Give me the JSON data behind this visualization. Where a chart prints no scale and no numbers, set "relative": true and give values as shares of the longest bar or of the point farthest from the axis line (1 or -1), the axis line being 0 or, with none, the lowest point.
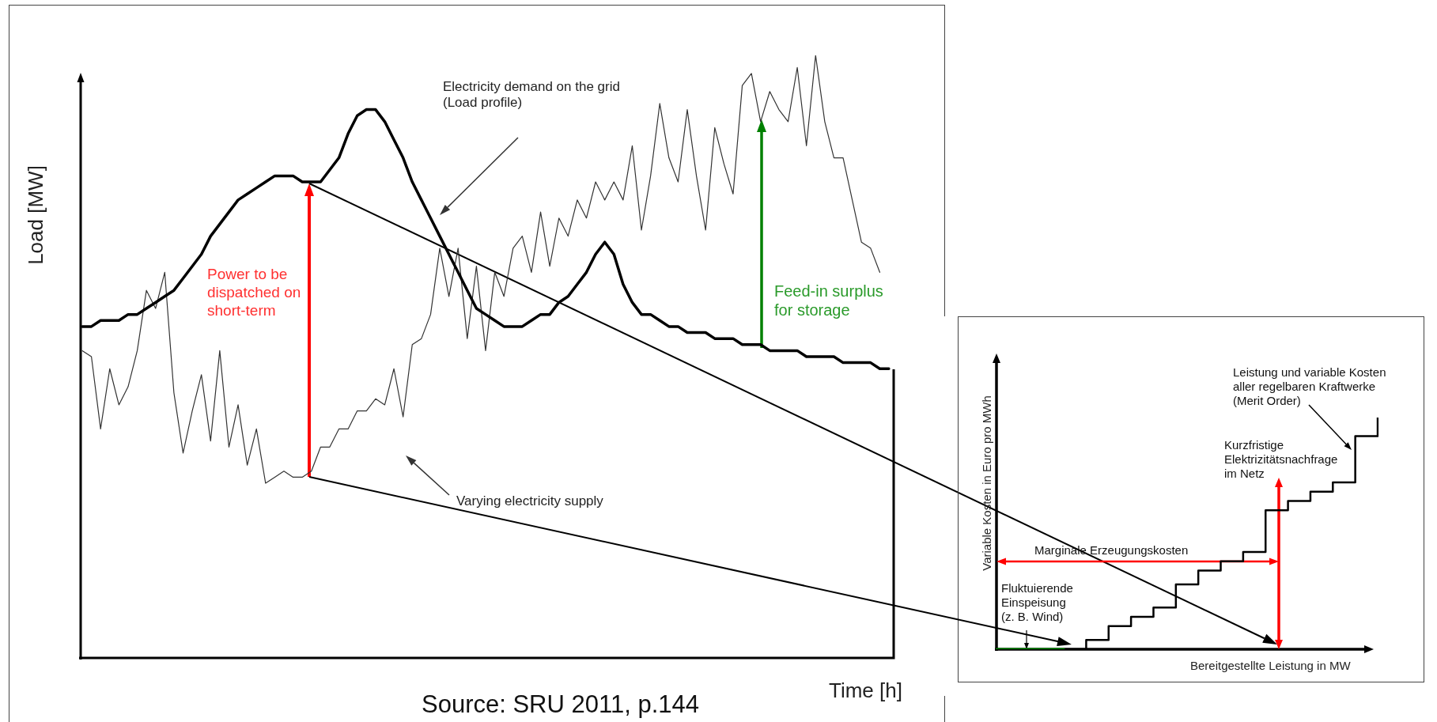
{
  "chart_data": [
    {
      "type": "line",
      "relative": true,
      "marker": "none",
      "xlabel": "Time [h]",
      "ylabel": "Load [MW]",
      "categories": [
        null,
        null,
        null,
        null,
        null,
        null,
        null,
        null,
        null,
        null,
        null,
        null,
        null,
        null,
        null,
        null,
        null,
        null,
        null,
        null,
        null,
        null,
        null,
        null,
        null,
        null,
        null,
        null,
        null,
        null,
        null,
        null,
        null,
        null,
        null,
        null,
        null,
        null,
        null,
        null,
        null,
        null,
        null,
        null,
        null,
        null,
        null,
        null,
        null,
        null,
        null,
        null,
        null,
        null,
        null,
        null,
        null,
        null,
        null,
        null,
        null,
        null,
        null,
        null,
        null,
        null,
        null,
        null,
        null,
        null,
        null,
        null,
        null,
        null,
        null,
        null,
        null,
        null,
        null,
        null,
        null,
        null,
        null,
        null,
        null,
        null,
        null,
        null,
        null
      ],
      "series": [
        {
          "color": "#000000",
          "values": [
            0.55,
            0.55,
            0.56,
            0.56,
            0.56,
            0.57,
            0.57,
            0.58,
            0.59,
            0.6,
            0.61,
            0.63,
            0.65,
            0.67,
            0.7,
            0.72,
            0.74,
            0.76,
            0.77,
            0.78,
            0.79,
            0.8,
            0.8,
            0.8,
            0.79,
            0.79,
            0.79,
            0.81,
            0.83,
            0.87,
            0.9,
            0.91,
            0.91,
            0.89,
            0.86,
            0.83,
            0.79,
            0.76,
            0.73,
            0.7,
            0.67,
            0.64,
            0.61,
            0.58,
            0.57,
            0.56,
            0.55,
            0.55,
            0.55,
            0.56,
            0.57,
            0.57,
            0.59,
            0.6,
            0.62,
            0.64,
            0.67,
            0.69,
            0.67,
            0.62,
            0.59,
            0.57,
            0.57,
            0.56,
            0.55,
            0.55,
            0.54,
            0.54,
            0.54,
            0.53,
            0.53,
            0.53,
            0.52,
            0.52,
            0.52,
            0.51,
            0.51,
            0.51,
            0.51,
            0.5,
            0.5,
            0.5,
            0.5,
            0.49,
            0.49,
            0.49,
            0.49,
            0.48,
            0.48
          ]
        },
        {
          "color": "#333333",
          "values": [
            0.51,
            0.5,
            0.38,
            0.48,
            0.42,
            0.45,
            0.51,
            0.61,
            0.58,
            0.64,
            0.44,
            0.34,
            0.41,
            0.47,
            0.36,
            0.51,
            0.35,
            0.42,
            0.32,
            0.38,
            0.29,
            0.3,
            0.31,
            0.3,
            0.3,
            0.31,
            0.35,
            0.35,
            0.38,
            0.38,
            0.41,
            0.41,
            0.43,
            0.42,
            0.48,
            0.4,
            0.52,
            0.53,
            0.57,
            0.68,
            0.6,
            0.68,
            0.53,
            0.65,
            0.51,
            0.64,
            0.6,
            0.68,
            0.7,
            0.64,
            0.74,
            0.65,
            0.73,
            0.7,
            0.76,
            0.73,
            0.79,
            0.76,
            0.79,
            0.76,
            0.85,
            0.71,
            0.8,
            0.92,
            0.83,
            0.79,
            0.91,
            0.8,
            0.71,
            0.88,
            0.82,
            0.77,
            0.95,
            0.97,
            0.89,
            0.94,
            0.91,
            0.89,
            0.98,
            0.85,
            1.0,
            0.89,
            0.83,
            0.83,
            0.76,
            0.69,
            0.68,
            0.64,
            null
          ]
        }
      ],
      "annotations": [
        "Electricity demand on the grid\n(Load profile)",
        "Power to be\ndispatched on\nshort-term",
        "Varying electricity supply",
        "Feed-in surplus\nfor storage",
        "Source: SRU 2011, p.144"
      ]
    },
    {
      "type": "step",
      "relative": true,
      "marker": "none",
      "xlabel": "Bereitgestellte Leistung in MW",
      "ylabel": "Variable Kosten in Euro pro MWh",
      "categories": [
        null,
        null,
        null,
        null,
        null,
        null,
        null,
        null,
        null,
        null,
        null,
        null,
        null,
        null,
        null,
        null,
        null,
        null
      ],
      "series": [
        {
          "color": "#008000",
          "values": [
            0,
            0,
            0,
            0,
            null,
            null,
            null,
            null,
            null,
            null,
            null,
            null,
            null,
            null,
            null,
            null,
            null,
            null
          ]
        },
        {
          "color": "#000000",
          "values": [
            null,
            null,
            null,
            0,
            0.04,
            0.1,
            0.14,
            0.18,
            0.28,
            0.34,
            0.38,
            0.42,
            0.6,
            0.64,
            0.68,
            0.72,
            0.92,
            1.0
          ]
        }
      ],
      "annotations": [
        "Leistung und variable Kosten\naller regelbaren Kraftwerke\n(Merit Order)",
        "Kurzfristige\nElektrizitätsnachfrage\nim Netz",
        "Marginale Erzeugungskosten",
        "Fluktuierende\nEinspeisung\n(z. B. Wind)"
      ]
    }
  ]
}
